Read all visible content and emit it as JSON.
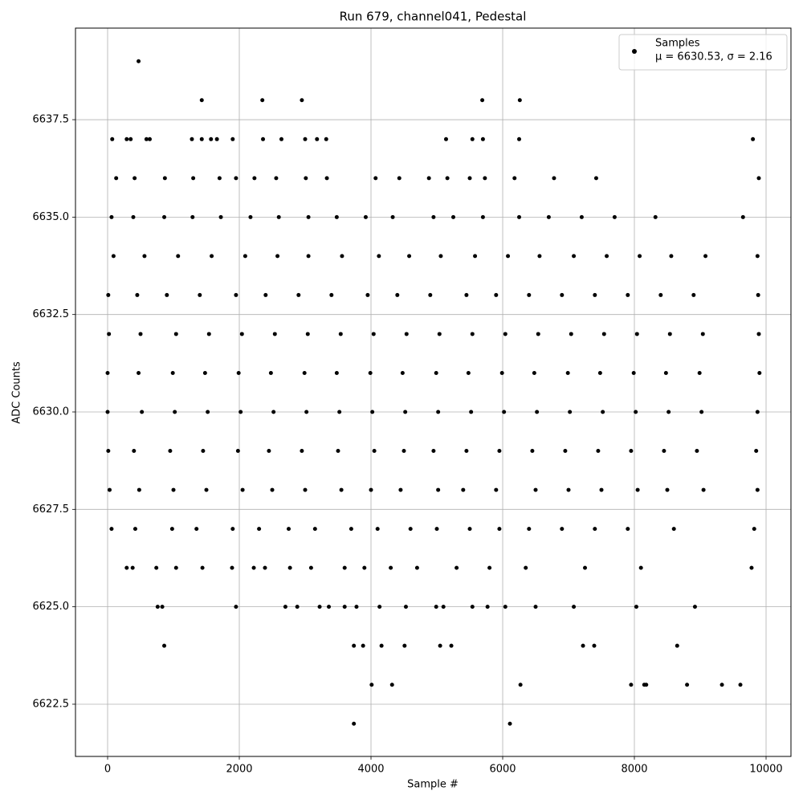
{
  "chart_data": {
    "type": "scatter",
    "title": "Run 679, channel041, Pedestal",
    "xlabel": "Sample #",
    "ylabel": "ADC Counts",
    "annotation": "μ = 6630.53, σ = 2.16",
    "legend": "upper right",
    "grid": true,
    "xlim": [
      -488,
      10378
    ],
    "xticks": [
      0,
      2000,
      4000,
      6000,
      8000,
      10000
    ],
    "ylim": [
      6621.16,
      6639.85
    ],
    "yticks": [
      6622.5,
      {
        "value": 6625,
        "label": "6625.0"
      },
      6627.5,
      {
        "value": 6630,
        "label": "6630.0"
      },
      6632.5,
      {
        "value": 6635,
        "label": "6635.0"
      },
      6637.5
    ],
    "series": [
      {
        "name": "Samples",
        "color": "#000000",
        "x": [
          470,
          1430,
          2350,
          2950,
          5690,
          6260,
          3740,
          6110,
          4010,
          4320,
          6270,
          7950,
          8150,
          8180,
          8800,
          9330,
          9610,
          860,
          3740,
          3880,
          4160,
          4510,
          5050,
          5220,
          7220,
          7390,
          8650,
          70,
          290,
          350,
          590,
          640,
          1280,
          1430,
          1570,
          1660,
          1900,
          2360,
          2640,
          3000,
          3180,
          3320,
          5140,
          5540,
          5700,
          6250,
          9800,
          130,
          410,
          870,
          1300,
          1700,
          1950,
          2230,
          2560,
          3010,
          3330,
          4070,
          4430,
          4880,
          5160,
          5500,
          5730,
          6180,
          6780,
          7420,
          9890,
          760,
          830,
          1950,
          2700,
          2880,
          3220,
          3360,
          3600,
          3780,
          4130,
          4530,
          4990,
          5100,
          5540,
          5770,
          6040,
          6500,
          7080,
          8030,
          8920,
          290,
          380,
          740,
          1040,
          1440,
          1890,
          2220,
          2390,
          2770,
          3090,
          3600,
          3900,
          4300,
          4700,
          5300,
          5800,
          6350,
          7250,
          8100,
          9780,
          60,
          420,
          980,
          1350,
          1900,
          2300,
          2750,
          3150,
          3700,
          4100,
          4600,
          5000,
          5500,
          5950,
          6400,
          6900,
          7400,
          7900,
          8600,
          9820,
          30,
          480,
          1000,
          1500,
          2050,
          2500,
          3000,
          3550,
          4000,
          4450,
          5020,
          5400,
          5900,
          6500,
          7000,
          7500,
          8050,
          8500,
          9050,
          9870,
          10,
          400,
          950,
          1450,
          1980,
          2450,
          2950,
          3500,
          4050,
          4500,
          4950,
          5450,
          5950,
          6450,
          6950,
          7450,
          7950,
          8450,
          8950,
          9850,
          0,
          520,
          1020,
          1520,
          2020,
          2520,
          3020,
          3520,
          4020,
          4520,
          5020,
          5520,
          6020,
          6520,
          7020,
          7520,
          8020,
          8520,
          9020,
          9870,
          0,
          470,
          990,
          1480,
          1990,
          2480,
          2990,
          3480,
          3990,
          4480,
          4990,
          5480,
          5990,
          6480,
          6990,
          7480,
          7990,
          8480,
          8990,
          9900,
          20,
          500,
          1040,
          1540,
          2040,
          2540,
          3040,
          3540,
          4040,
          4540,
          5040,
          5540,
          6040,
          6540,
          7040,
          7540,
          8040,
          8540,
          9040,
          9890,
          10,
          450,
          900,
          1400,
          1950,
          2400,
          2900,
          3400,
          3950,
          4400,
          4900,
          5450,
          5900,
          6400,
          6900,
          7400,
          7900,
          8400,
          8900,
          9880,
          90,
          560,
          1070,
          1580,
          2090,
          2580,
          3050,
          3560,
          4120,
          4580,
          5060,
          5580,
          6080,
          6560,
          7080,
          7580,
          8080,
          8560,
          9080,
          9870,
          60,
          390,
          860,
          1290,
          1720,
          2170,
          2600,
          3050,
          3480,
          3920,
          4330,
          4950,
          5250,
          5700,
          6250,
          6700,
          7200,
          7700,
          8320,
          9650
        ],
        "values": [
          6639,
          6638,
          6638,
          6638,
          6638,
          6638,
          6622,
          6622,
          6623,
          6623,
          6623,
          6623,
          6623,
          6623,
          6623,
          6623,
          6623,
          6624,
          6624,
          6624,
          6624,
          6624,
          6624,
          6624,
          6624,
          6624,
          6624,
          6637,
          6637,
          6637,
          6637,
          6637,
          6637,
          6637,
          6637,
          6637,
          6637,
          6637,
          6637,
          6637,
          6637,
          6637,
          6637,
          6637,
          6637,
          6637,
          6637,
          6636,
          6636,
          6636,
          6636,
          6636,
          6636,
          6636,
          6636,
          6636,
          6636,
          6636,
          6636,
          6636,
          6636,
          6636,
          6636,
          6636,
          6636,
          6636,
          6636,
          6625,
          6625,
          6625,
          6625,
          6625,
          6625,
          6625,
          6625,
          6625,
          6625,
          6625,
          6625,
          6625,
          6625,
          6625,
          6625,
          6625,
          6625,
          6625,
          6625,
          6626,
          6626,
          6626,
          6626,
          6626,
          6626,
          6626,
          6626,
          6626,
          6626,
          6626,
          6626,
          6626,
          6626,
          6626,
          6626,
          6626,
          6626,
          6626,
          6626,
          6627,
          6627,
          6627,
          6627,
          6627,
          6627,
          6627,
          6627,
          6627,
          6627,
          6627,
          6627,
          6627,
          6627,
          6627,
          6627,
          6627,
          6627,
          6627,
          6627,
          6628,
          6628,
          6628,
          6628,
          6628,
          6628,
          6628,
          6628,
          6628,
          6628,
          6628,
          6628,
          6628,
          6628,
          6628,
          6628,
          6628,
          6628,
          6628,
          6628,
          6629,
          6629,
          6629,
          6629,
          6629,
          6629,
          6629,
          6629,
          6629,
          6629,
          6629,
          6629,
          6629,
          6629,
          6629,
          6629,
          6629,
          6629,
          6629,
          6629,
          6630,
          6630,
          6630,
          6630,
          6630,
          6630,
          6630,
          6630,
          6630,
          6630,
          6630,
          6630,
          6630,
          6630,
          6630,
          6630,
          6630,
          6630,
          6630,
          6630,
          6631,
          6631,
          6631,
          6631,
          6631,
          6631,
          6631,
          6631,
          6631,
          6631,
          6631,
          6631,
          6631,
          6631,
          6631,
          6631,
          6631,
          6631,
          6631,
          6631,
          6632,
          6632,
          6632,
          6632,
          6632,
          6632,
          6632,
          6632,
          6632,
          6632,
          6632,
          6632,
          6632,
          6632,
          6632,
          6632,
          6632,
          6632,
          6632,
          6632,
          6633,
          6633,
          6633,
          6633,
          6633,
          6633,
          6633,
          6633,
          6633,
          6633,
          6633,
          6633,
          6633,
          6633,
          6633,
          6633,
          6633,
          6633,
          6633,
          6633,
          6634,
          6634,
          6634,
          6634,
          6634,
          6634,
          6634,
          6634,
          6634,
          6634,
          6634,
          6634,
          6634,
          6634,
          6634,
          6634,
          6634,
          6634,
          6634,
          6634,
          6635,
          6635,
          6635,
          6635,
          6635,
          6635,
          6635,
          6635,
          6635,
          6635,
          6635,
          6635,
          6635,
          6635,
          6635,
          6635,
          6635,
          6635,
          6635,
          6635
        ]
      }
    ]
  }
}
